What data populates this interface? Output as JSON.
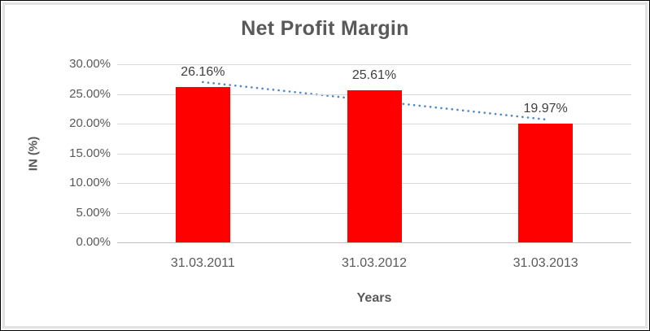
{
  "chart_data": {
    "type": "bar",
    "title": "Net Profit Margin",
    "xlabel": "Years",
    "ylabel": "IN (%)",
    "categories": [
      "31.03.2011",
      "31.03.2012",
      "31.03.2013"
    ],
    "values": [
      26.16,
      25.61,
      19.97
    ],
    "data_labels": [
      "26.16%",
      "25.61%",
      "19.97%"
    ],
    "ylim": [
      0,
      30
    ],
    "ytick_step": 5,
    "yticks": [
      "30.00%",
      "25.00%",
      "20.00%",
      "15.00%",
      "10.00%",
      "5.00%",
      "0.00%"
    ],
    "grid": true,
    "legend": "none",
    "bar_color": "#FF0000",
    "gridline_color": "#D9D9D9",
    "axis_line_color": "#BFBFBF",
    "text_color": "#595959",
    "data_label_color": "#404040",
    "trendline": {
      "style": "dotted",
      "color": "#4A86C8",
      "start_pct": 27.0,
      "end_pct": 20.7
    }
  }
}
